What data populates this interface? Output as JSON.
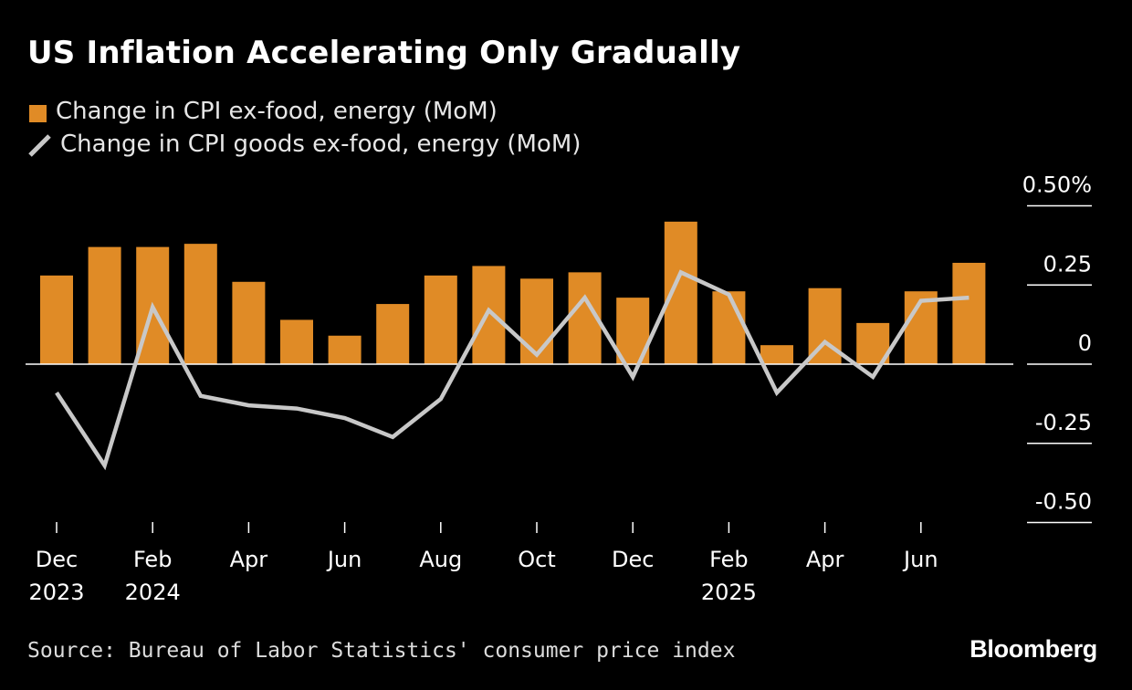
{
  "title": "US Inflation Accelerating Only Gradually",
  "legend": {
    "bar_label": "Change in CPI ex-food, energy (MoM)",
    "line_label": "Change in CPI goods ex-food, energy (MoM)"
  },
  "source": "Source: Bureau of Labor Statistics' consumer price index",
  "brand": "Bloomberg",
  "colors": {
    "background": "#000000",
    "bar": "#E08B26",
    "line": "#C8C8C8",
    "text": "#FFFFFF",
    "axis": "#FFFFFF"
  },
  "chart_data": {
    "type": "bar",
    "title": "US Inflation Accelerating Only Gradually",
    "months": [
      "Dec 2023",
      "Jan 2024",
      "Feb 2024",
      "Mar 2024",
      "Apr 2024",
      "May 2024",
      "Jun 2024",
      "Jul 2024",
      "Aug 2024",
      "Sep 2024",
      "Oct 2024",
      "Nov 2024",
      "Dec 2024",
      "Jan 2025",
      "Feb 2025",
      "Mar 2025",
      "Apr 2025",
      "May 2025",
      "Jun 2025",
      "Jul 2025"
    ],
    "series": [
      {
        "name": "Change in CPI ex-food, energy (MoM)",
        "type": "bar",
        "values": [
          0.28,
          0.37,
          0.37,
          0.38,
          0.26,
          0.14,
          0.09,
          0.19,
          0.28,
          0.31,
          0.27,
          0.29,
          0.21,
          0.45,
          0.23,
          0.06,
          0.24,
          0.13,
          0.23,
          0.32
        ]
      },
      {
        "name": "Change in CPI goods ex-food, energy (MoM)",
        "type": "line",
        "values": [
          -0.09,
          -0.32,
          0.18,
          -0.1,
          -0.13,
          -0.14,
          -0.17,
          -0.23,
          -0.11,
          0.17,
          0.03,
          0.21,
          -0.04,
          0.29,
          0.22,
          -0.09,
          0.07,
          -0.04,
          0.2,
          0.21
        ]
      }
    ],
    "ylim": [
      -0.5,
      0.5
    ],
    "yticks": [
      0.5,
      0.25,
      0,
      -0.25,
      -0.5
    ],
    "ytick_labels": [
      "0.50%",
      "0.25",
      "0",
      "-0.25",
      "-0.50"
    ],
    "xticks": [
      {
        "index": 0,
        "line1": "Dec",
        "line2": "2023"
      },
      {
        "index": 2,
        "line1": "Feb",
        "line2": "2024"
      },
      {
        "index": 4,
        "line1": "Apr",
        "line2": ""
      },
      {
        "index": 6,
        "line1": "Jun",
        "line2": ""
      },
      {
        "index": 8,
        "line1": "Aug",
        "line2": ""
      },
      {
        "index": 10,
        "line1": "Oct",
        "line2": ""
      },
      {
        "index": 12,
        "line1": "Dec",
        "line2": ""
      },
      {
        "index": 14,
        "line1": "Feb",
        "line2": "2025"
      },
      {
        "index": 16,
        "line1": "Apr",
        "line2": ""
      },
      {
        "index": 18,
        "line1": "Jun",
        "line2": ""
      }
    ],
    "xlabel": "",
    "ylabel": ""
  }
}
